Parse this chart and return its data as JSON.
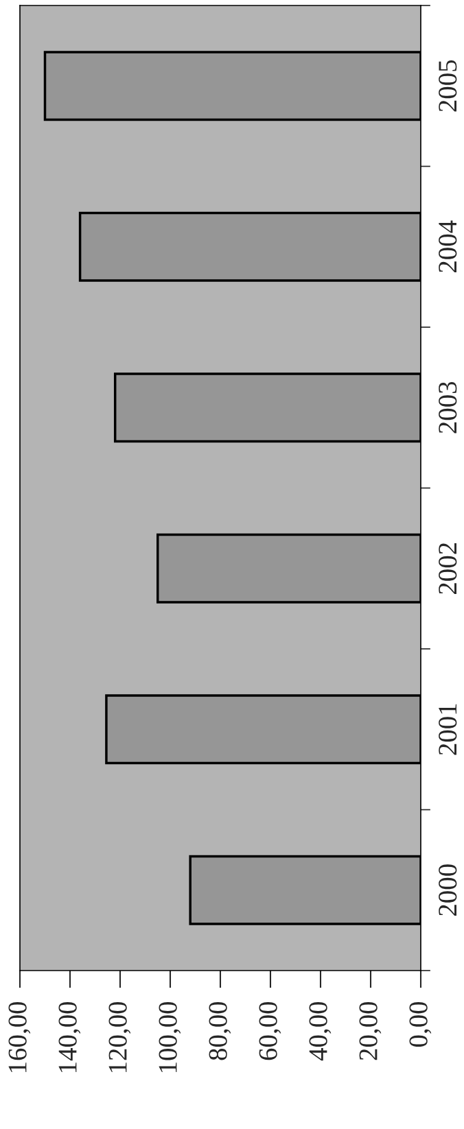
{
  "chart_data": {
    "type": "bar",
    "orientation": "horizontal",
    "categories": [
      "2005",
      "2004",
      "2003",
      "2002",
      "2001",
      "2000"
    ],
    "values": [
      150,
      136,
      122,
      105,
      125.5,
      92
    ],
    "color": "#969696",
    "xlim": [
      160,
      0
    ],
    "xticks": [
      {
        "value": 160,
        "label": "160,00"
      },
      {
        "value": 140,
        "label": "140,00"
      },
      {
        "value": 120,
        "label": "120,00"
      },
      {
        "value": 100,
        "label": "100,00"
      },
      {
        "value": 80,
        "label": "80,00"
      },
      {
        "value": 60,
        "label": "60,00"
      },
      {
        "value": 40,
        "label": "40,00"
      },
      {
        "value": 20,
        "label": "20,00"
      },
      {
        "value": 0,
        "label": "0,00"
      }
    ],
    "grid": false,
    "legend": false
  }
}
